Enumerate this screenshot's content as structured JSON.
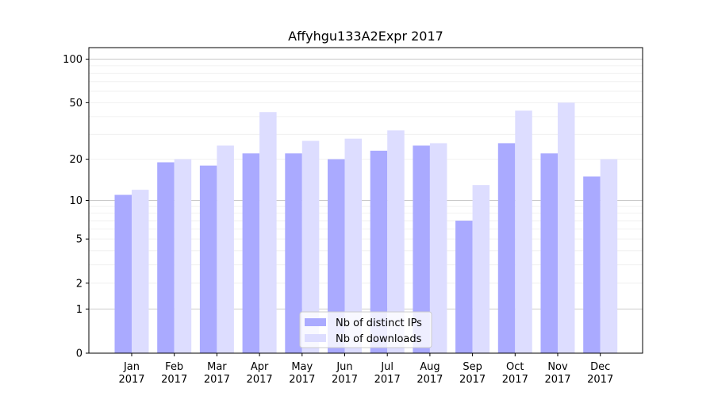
{
  "chart_data": {
    "type": "bar",
    "title": "Affyhgu133A2Expr 2017",
    "xlabel": "",
    "ylabel": "",
    "yscale": "symlog",
    "ylim": [
      0,
      120
    ],
    "yticks": [
      0,
      1,
      2,
      5,
      10,
      20,
      50,
      100
    ],
    "ytick_labels": [
      "0",
      "1",
      "2",
      "5",
      "10",
      "20",
      "50",
      "100"
    ],
    "grid": "horizontal",
    "legend_position": "bottom-center",
    "categories": [
      "Jan\n2017",
      "Feb\n2017",
      "Mar\n2017",
      "Apr\n2017",
      "May\n2017",
      "Jun\n2017",
      "Jul\n2017",
      "Aug\n2017",
      "Sep\n2017",
      "Oct\n2017",
      "Nov\n2017",
      "Dec\n2017"
    ],
    "series": [
      {
        "name": "Nb of distinct IPs",
        "color": "#aaaaff",
        "values": [
          11,
          19,
          18,
          22,
          22,
          20,
          23,
          25,
          7,
          26,
          22,
          15
        ]
      },
      {
        "name": "Nb of downloads",
        "color": "#ddddff",
        "values": [
          12,
          20,
          25,
          43,
          27,
          28,
          32,
          26,
          13,
          44,
          50,
          20
        ]
      }
    ]
  }
}
